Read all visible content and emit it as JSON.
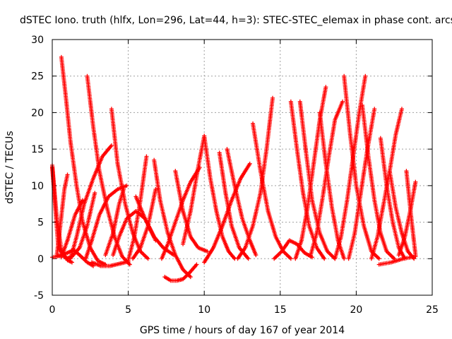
{
  "chart_data": {
    "type": "scatter",
    "title": "dSTEC Iono. truth (hlfx, Lon=296, Lat=44, h=3): STEC-STEC_elemax in phase cont. arcs",
    "xlabel": "GPS time / hours of day 167 of year 2014",
    "ylabel": "dSTEC  / TECUs",
    "xlim": [
      0,
      25
    ],
    "ylim": [
      -5,
      30
    ],
    "xticks": [
      0,
      5,
      10,
      15,
      20,
      25
    ],
    "yticks": [
      -5,
      0,
      5,
      10,
      15,
      20,
      25,
      30
    ],
    "grid": true,
    "marker": "+",
    "color": "#ff0000",
    "series": [
      {
        "x": [
          0.0,
          0.4,
          0.9,
          1.3,
          1.8,
          2.3,
          2.8
        ],
        "y": [
          12.5,
          1.5,
          0.0,
          0.3,
          1.5,
          4.5,
          9.0
        ]
      },
      {
        "x": [
          0.0,
          0.3,
          0.6,
          1.0,
          1.3
        ],
        "y": [
          12.8,
          5.5,
          1.2,
          -0.2,
          -0.5
        ]
      },
      {
        "x": [
          0.0,
          0.3,
          0.6,
          1.0,
          1.4,
          1.8,
          2.3,
          2.7
        ],
        "y": [
          0.2,
          0.3,
          0.5,
          0.8,
          1.2,
          0.5,
          -0.5,
          -1.0
        ]
      },
      {
        "x": [
          0.3,
          0.5,
          0.8,
          1.0
        ],
        "y": [
          0.5,
          4.0,
          9.5,
          11.5
        ]
      },
      {
        "x": [
          0.6,
          0.9,
          1.2,
          1.6,
          2.0,
          2.5,
          3.0,
          3.5
        ],
        "y": [
          27.6,
          22.0,
          16.0,
          10.0,
          5.0,
          1.5,
          -0.3,
          -0.8
        ]
      },
      {
        "x": [
          0.6,
          1.0,
          1.5,
          2.0
        ],
        "y": [
          0.2,
          2.5,
          6.0,
          8.0
        ]
      },
      {
        "x": [
          1.2,
          1.6,
          2.1,
          2.7,
          3.3,
          3.9
        ],
        "y": [
          0.0,
          3.0,
          7.5,
          11.0,
          14.0,
          15.5
        ]
      },
      {
        "x": [
          2.3,
          2.7,
          3.1,
          3.6,
          4.1,
          4.6,
          5.1
        ],
        "y": [
          25.0,
          18.0,
          12.0,
          7.0,
          3.0,
          0.3,
          -0.8
        ]
      },
      {
        "x": [
          2.2,
          2.6,
          3.1,
          3.7,
          4.3,
          4.9
        ],
        "y": [
          0.0,
          2.5,
          6.0,
          8.5,
          9.5,
          10.0
        ]
      },
      {
        "x": [
          2.6,
          3.2,
          3.8,
          4.4,
          5.0
        ],
        "y": [
          -0.5,
          -1.0,
          -1.0,
          -0.7,
          -0.4
        ]
      },
      {
        "x": [
          3.9,
          4.3,
          4.8,
          5.3,
          5.8,
          6.3
        ],
        "y": [
          20.5,
          13.0,
          7.5,
          3.5,
          1.0,
          0.0
        ]
      },
      {
        "x": [
          3.5,
          4.0,
          4.4,
          4.7
        ],
        "y": [
          0.5,
          3.5,
          7.5,
          9.5
        ]
      },
      {
        "x": [
          4.0,
          4.4,
          4.9,
          5.5,
          6.1,
          6.8
        ],
        "y": [
          0.5,
          3.0,
          5.5,
          6.5,
          5.5,
          2.5
        ]
      },
      {
        "x": [
          5.0,
          5.4,
          5.8,
          6.2
        ],
        "y": [
          -0.2,
          3.0,
          8.0,
          14.0
        ]
      },
      {
        "x": [
          5.5,
          6.1,
          6.7,
          7.3,
          8.0
        ],
        "y": [
          8.5,
          5.5,
          3.0,
          1.5,
          0.5
        ]
      },
      {
        "x": [
          5.3,
          5.8,
          6.3,
          6.8
        ],
        "y": [
          0.0,
          1.5,
          4.5,
          9.5
        ]
      },
      {
        "x": [
          6.7,
          7.1,
          7.6,
          8.1,
          8.6,
          9.1
        ],
        "y": [
          13.5,
          8.0,
          3.5,
          0.5,
          -1.5,
          -2.5
        ]
      },
      {
        "x": [
          7.4,
          7.8,
          8.2,
          8.6,
          9.0,
          9.5
        ],
        "y": [
          -2.5,
          -3.0,
          -3.0,
          -2.8,
          -2.0,
          -0.8
        ]
      },
      {
        "x": [
          7.2,
          7.6,
          8.1,
          8.6,
          9.1,
          9.7
        ],
        "y": [
          0.0,
          2.0,
          5.0,
          8.0,
          10.5,
          12.5
        ]
      },
      {
        "x": [
          8.1,
          8.6,
          9.1,
          9.6,
          10.2
        ],
        "y": [
          12.0,
          6.5,
          3.0,
          1.5,
          1.0
        ]
      },
      {
        "x": [
          8.6,
          9.1,
          9.6,
          10.0
        ],
        "y": [
          2.0,
          6.5,
          12.5,
          16.8
        ]
      },
      {
        "x": [
          10.0,
          10.4,
          10.8,
          11.2,
          11.6,
          12.0
        ],
        "y": [
          16.8,
          11.0,
          6.5,
          3.0,
          1.0,
          0.0
        ]
      },
      {
        "x": [
          10.0,
          10.6,
          11.2,
          11.8,
          12.4,
          13.0
        ],
        "y": [
          -0.5,
          1.5,
          4.5,
          8.0,
          11.0,
          13.0
        ]
      },
      {
        "x": [
          11.0,
          11.4,
          11.8,
          12.3,
          12.9
        ],
        "y": [
          14.5,
          9.0,
          4.5,
          1.5,
          0.0
        ]
      },
      {
        "x": [
          11.5,
          12.0,
          12.5,
          13.0,
          13.4
        ],
        "y": [
          15.0,
          10.0,
          5.5,
          2.5,
          0.5
        ]
      },
      {
        "x": [
          12.2,
          12.7,
          13.2,
          13.7,
          14.1,
          14.5
        ],
        "y": [
          0.0,
          1.5,
          4.5,
          9.0,
          15.0,
          22.0
        ]
      },
      {
        "x": [
          13.2,
          13.7,
          14.2,
          14.7,
          15.2,
          15.7
        ],
        "y": [
          18.5,
          12.0,
          6.5,
          3.0,
          1.0,
          0.0
        ]
      },
      {
        "x": [
          14.6,
          15.1,
          15.6,
          16.1,
          16.6,
          17.1
        ],
        "y": [
          0.0,
          1.0,
          2.5,
          2.0,
          0.8,
          0.2
        ]
      },
      {
        "x": [
          15.7,
          16.1,
          16.5,
          16.9,
          17.4,
          17.9
        ],
        "y": [
          21.5,
          15.0,
          9.0,
          4.5,
          1.5,
          0.0
        ]
      },
      {
        "x": [
          16.0,
          16.4,
          16.8,
          17.2,
          17.6,
          18.0
        ],
        "y": [
          0.0,
          2.5,
          7.0,
          13.0,
          19.0,
          23.5
        ]
      },
      {
        "x": [
          16.3,
          16.7,
          17.1,
          17.6,
          18.1,
          18.6
        ],
        "y": [
          21.5,
          14.5,
          8.0,
          3.5,
          1.0,
          0.0
        ]
      },
      {
        "x": [
          17.0,
          17.4,
          17.8,
          18.2,
          18.6,
          19.1
        ],
        "y": [
          0.5,
          3.5,
          8.5,
          14.0,
          19.0,
          21.5
        ]
      },
      {
        "x": [
          17.6,
          18.0,
          18.4,
          18.8,
          19.2
        ],
        "y": [
          20.0,
          13.0,
          7.0,
          2.5,
          0.0
        ]
      },
      {
        "x": [
          18.6,
          19.0,
          19.4,
          19.8,
          20.2,
          20.6
        ],
        "y": [
          0.0,
          3.0,
          8.0,
          14.0,
          20.0,
          25.0
        ]
      },
      {
        "x": [
          19.2,
          19.6,
          20.0,
          20.5,
          21.0,
          21.5
        ],
        "y": [
          25.0,
          17.0,
          10.0,
          4.5,
          1.0,
          0.0
        ]
      },
      {
        "x": [
          19.5,
          19.9,
          20.3,
          20.7,
          21.2
        ],
        "y": [
          0.0,
          3.5,
          9.0,
          14.5,
          20.5
        ]
      },
      {
        "x": [
          20.4,
          20.8,
          21.2,
          21.6,
          22.0,
          22.5
        ],
        "y": [
          21.0,
          14.0,
          8.0,
          3.5,
          1.0,
          0.0
        ]
      },
      {
        "x": [
          21.0,
          21.4,
          21.8,
          22.2,
          22.6,
          23.0
        ],
        "y": [
          0.0,
          3.0,
          7.5,
          12.0,
          17.0,
          20.5
        ]
      },
      {
        "x": [
          21.6,
          22.0,
          22.4,
          22.8,
          23.2
        ],
        "y": [
          16.5,
          10.0,
          5.0,
          1.5,
          0.0
        ]
      },
      {
        "x": [
          22.2,
          22.6,
          23.0,
          23.4,
          23.8
        ],
        "y": [
          12.0,
          7.0,
          3.5,
          1.0,
          0.0
        ]
      },
      {
        "x": [
          22.8,
          23.2,
          23.6,
          23.9
        ],
        "y": [
          0.5,
          3.0,
          7.0,
          10.5
        ]
      },
      {
        "x": [
          23.3,
          23.6,
          23.9
        ],
        "y": [
          12.0,
          6.0,
          0.5
        ]
      },
      {
        "x": [
          21.5,
          22.3,
          23.1,
          23.9
        ],
        "y": [
          -0.8,
          -0.5,
          0.0,
          0.3
        ]
      }
    ]
  }
}
